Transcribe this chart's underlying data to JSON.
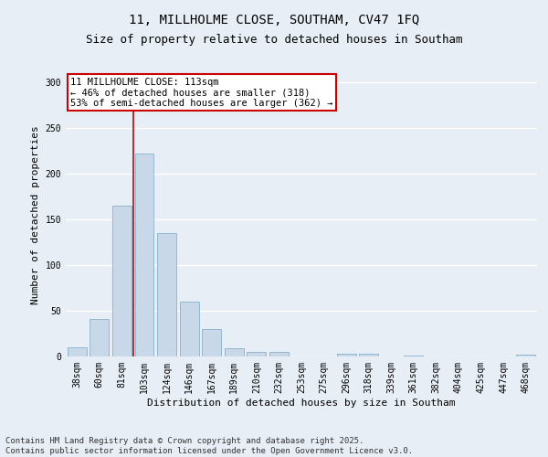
{
  "title": "11, MILLHOLME CLOSE, SOUTHAM, CV47 1FQ",
  "subtitle": "Size of property relative to detached houses in Southam",
  "xlabel": "Distribution of detached houses by size in Southam",
  "ylabel": "Number of detached properties",
  "categories": [
    "38sqm",
    "60sqm",
    "81sqm",
    "103sqm",
    "124sqm",
    "146sqm",
    "167sqm",
    "189sqm",
    "210sqm",
    "232sqm",
    "253sqm",
    "275sqm",
    "296sqm",
    "318sqm",
    "339sqm",
    "361sqm",
    "382sqm",
    "404sqm",
    "425sqm",
    "447sqm",
    "468sqm"
  ],
  "values": [
    10,
    41,
    165,
    222,
    135,
    60,
    30,
    9,
    5,
    5,
    0,
    0,
    3,
    3,
    0,
    1,
    0,
    0,
    0,
    0,
    2
  ],
  "bar_color": "#c8d8e8",
  "bar_edge_color": "#8ab0cc",
  "property_bin_index": 3,
  "vline_color": "#cc0000",
  "annotation_text": "11 MILLHOLME CLOSE: 113sqm\n← 46% of detached houses are smaller (318)\n53% of semi-detached houses are larger (362) →",
  "annotation_box_color": "#ffffff",
  "annotation_box_edge": "#cc0000",
  "ylim": [
    0,
    310
  ],
  "yticks": [
    0,
    50,
    100,
    150,
    200,
    250,
    300
  ],
  "footer": "Contains HM Land Registry data © Crown copyright and database right 2025.\nContains public sector information licensed under the Open Government Licence v3.0.",
  "bg_color": "#e8eef5",
  "plot_bg_color": "#e8eef5",
  "grid_color": "#ffffff",
  "title_fontsize": 10,
  "subtitle_fontsize": 9,
  "axis_label_fontsize": 8,
  "tick_fontsize": 7,
  "annotation_fontsize": 7.5,
  "footer_fontsize": 6.5
}
